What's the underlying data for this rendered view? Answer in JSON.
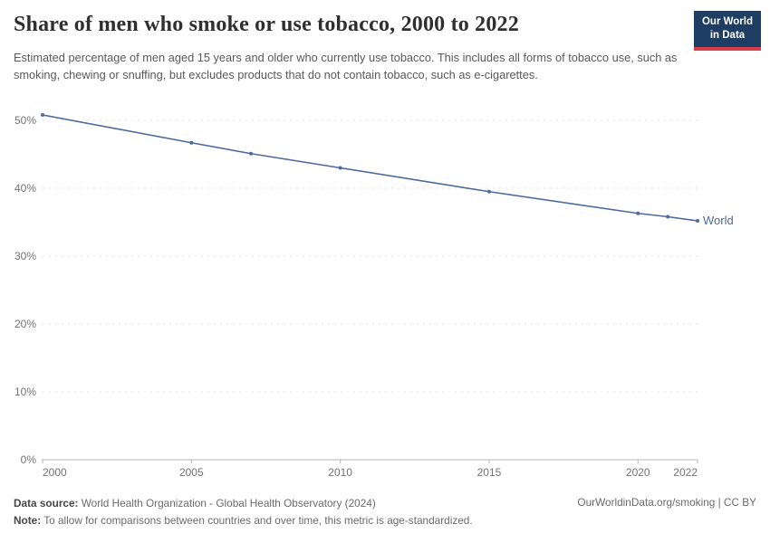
{
  "header": {
    "subtitle": "Estimated percentage of men aged 15 years and older who currently use tobacco. This includes all forms of tobacco use, such as smoking, chewing or snuffing, but excludes products that do not contain tobacco, such as e-cigarettes."
  },
  "logo": {
    "line1": "Our World",
    "line2": "in Data",
    "bg_color": "#1d3d63",
    "accent_color": "#d73c4c"
  },
  "chart_data": {
    "type": "line",
    "title": "Share of men who smoke or use tobacco, 2000 to 2022",
    "x": [
      2000,
      2005,
      2007,
      2010,
      2015,
      2020,
      2021,
      2022
    ],
    "series": [
      {
        "name": "World",
        "color": "#4c6a9c",
        "values": [
          50.8,
          46.7,
          45.1,
          43.0,
          39.5,
          36.3,
          35.8,
          35.2
        ]
      }
    ],
    "xlim": [
      2000,
      2022
    ],
    "ylim": [
      0,
      50
    ],
    "x_ticks": [
      {
        "value": 2000,
        "label": "2000"
      },
      {
        "value": 2005,
        "label": "2005"
      },
      {
        "value": 2010,
        "label": "2010"
      },
      {
        "value": 2015,
        "label": "2015"
      },
      {
        "value": 2020,
        "label": "2020"
      },
      {
        "value": 2022,
        "label": "2022"
      }
    ],
    "y_ticks": [
      {
        "value": 0,
        "label": "0%"
      },
      {
        "value": 10,
        "label": "10%"
      },
      {
        "value": 20,
        "label": "20%"
      },
      {
        "value": 30,
        "label": "30%"
      },
      {
        "value": 40,
        "label": "40%"
      },
      {
        "value": 50,
        "label": "50%"
      }
    ],
    "grid": "horizontal-dashed",
    "legend": "end-of-line-label"
  },
  "footer": {
    "data_source_label": "Data source:",
    "data_source_text": " World Health Organization - Global Health Observatory (2024)",
    "note_label": "Note:",
    "note_text": " To allow for comparisons between countries and over time, this metric is age-standardized.",
    "right_text": "OurWorldinData.org/smoking | CC BY"
  }
}
